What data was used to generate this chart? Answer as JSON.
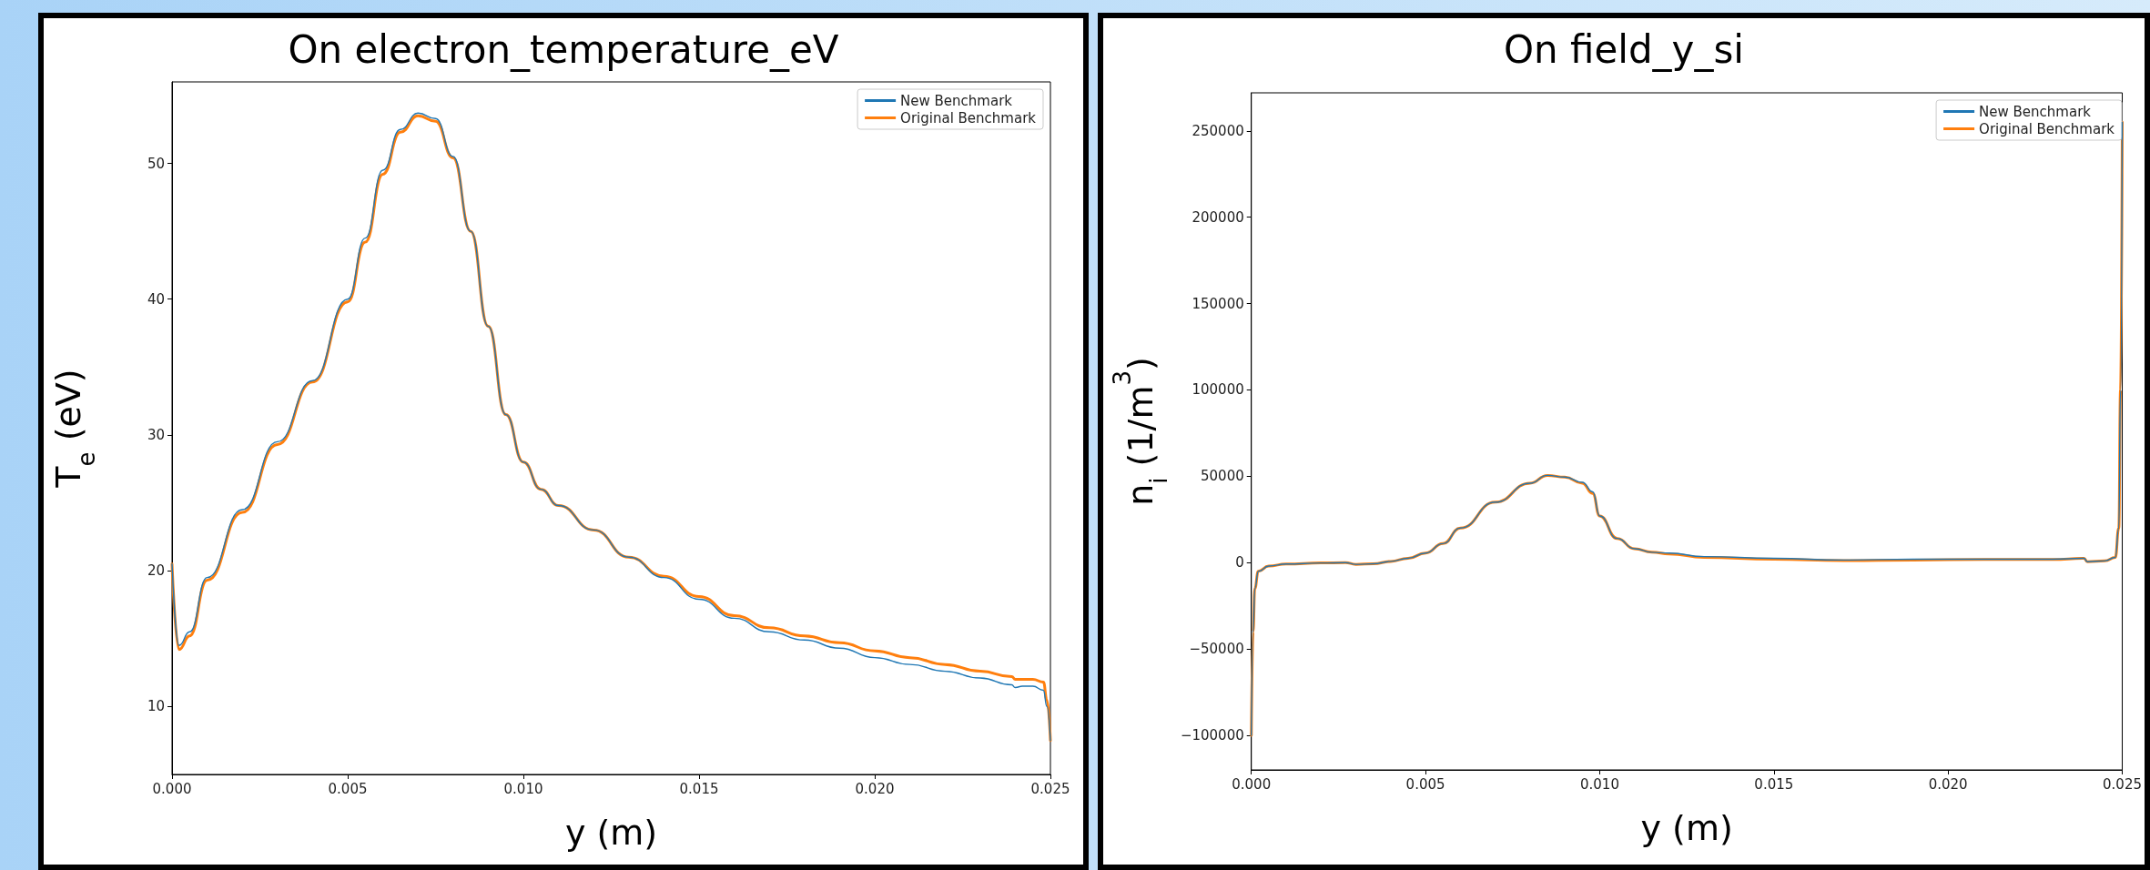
{
  "chart_data": [
    {
      "type": "line",
      "title": "On electron_temperature_eV",
      "xlabel": "y (m)",
      "ylabel": "T$_{e}$ (eV)",
      "xlim": [
        0,
        0.025
      ],
      "ylim": [
        5,
        56
      ],
      "xticks": [
        {
          "value": 0,
          "label": "0.000"
        },
        {
          "value": 0.005,
          "label": "0.005"
        },
        {
          "value": 0.01,
          "label": "0.010"
        },
        {
          "value": 0.015,
          "label": "0.015"
        },
        {
          "value": 0.02,
          "label": "0.020"
        },
        {
          "value": 0.025,
          "label": "0.025"
        }
      ],
      "yticks": [
        10,
        20,
        30,
        40,
        50
      ],
      "grid": false,
      "legend": "top right",
      "marker": "none",
      "line_style": "solid",
      "series": [
        {
          "name": "New Benchmark",
          "color": "#1f77b4",
          "x": [
            0,
            0.0002,
            0.0005,
            0.001,
            0.002,
            0.003,
            0.004,
            0.005,
            0.0055,
            0.006,
            0.0065,
            0.007,
            0.0075,
            0.008,
            0.0085,
            0.009,
            0.0095,
            0.01,
            0.0105,
            0.011,
            0.012,
            0.013,
            0.014,
            0.015,
            0.016,
            0.017,
            0.018,
            0.019,
            0.02,
            0.021,
            0.022,
            0.023,
            0.0239,
            0.024,
            0.0242,
            0.0245,
            0.0248,
            0.0249,
            0.025
          ],
          "values": [
            20.5,
            14.5,
            15.5,
            19.5,
            24.5,
            29.5,
            34,
            40,
            44.5,
            49.5,
            52.5,
            53.7,
            53.3,
            50.5,
            45,
            38,
            31.5,
            28,
            26,
            24.8,
            23,
            21,
            19.5,
            17.9,
            16.5,
            15.5,
            14.9,
            14.3,
            13.6,
            13.1,
            12.6,
            12.1,
            11.6,
            11.4,
            11.5,
            11.5,
            11.2,
            10,
            7.5
          ]
        },
        {
          "name": "Original Benchmark",
          "color": "#ff7f0e",
          "x": [
            0,
            0.0002,
            0.0005,
            0.001,
            0.002,
            0.003,
            0.004,
            0.005,
            0.0055,
            0.006,
            0.0065,
            0.007,
            0.0075,
            0.008,
            0.0085,
            0.009,
            0.0095,
            0.01,
            0.0105,
            0.011,
            0.012,
            0.013,
            0.014,
            0.015,
            0.016,
            0.017,
            0.018,
            0.019,
            0.02,
            0.021,
            0.022,
            0.023,
            0.0239,
            0.024,
            0.0242,
            0.0245,
            0.0248,
            0.0249,
            0.025
          ],
          "values": [
            20.5,
            14.2,
            15.2,
            19.3,
            24.3,
            29.3,
            33.9,
            39.8,
            44.2,
            49.2,
            52.3,
            53.5,
            53.1,
            50.4,
            45,
            38,
            31.5,
            28,
            26,
            24.8,
            23,
            21,
            19.6,
            18.1,
            16.7,
            15.8,
            15.2,
            14.7,
            14.1,
            13.6,
            13.1,
            12.6,
            12.2,
            12,
            12,
            12,
            11.8,
            10.5,
            7.5
          ]
        }
      ]
    },
    {
      "type": "line",
      "title": "On field_y_si",
      "xlabel": "y (m)",
      "ylabel": "n$_{i}$ (1/m$^{3}$)",
      "xlim": [
        0,
        0.025
      ],
      "ylim": [
        -120000,
        272000
      ],
      "xticks": [
        {
          "value": 0,
          "label": "0.000"
        },
        {
          "value": 0.005,
          "label": "0.005"
        },
        {
          "value": 0.01,
          "label": "0.010"
        },
        {
          "value": 0.015,
          "label": "0.015"
        },
        {
          "value": 0.02,
          "label": "0.020"
        },
        {
          "value": 0.025,
          "label": "0.025"
        }
      ],
      "yticks": [
        {
          "value": -100000,
          "label": "−100000"
        },
        {
          "value": -50000,
          "label": "−50000"
        },
        0,
        50000,
        100000,
        150000,
        200000,
        250000
      ],
      "grid": false,
      "legend": "top right",
      "marker": "none",
      "line_style": "solid",
      "series": [
        {
          "name": "New Benchmark",
          "color": "#1f77b4",
          "x": [
            0,
            5e-05,
            0.0001,
            0.0002,
            0.0005,
            0.001,
            0.002,
            0.0027,
            0.003,
            0.0035,
            0.004,
            0.0045,
            0.005,
            0.0055,
            0.006,
            0.007,
            0.008,
            0.0085,
            0.009,
            0.0095,
            0.0098,
            0.01,
            0.0105,
            0.011,
            0.0115,
            0.012,
            0.013,
            0.015,
            0.017,
            0.019,
            0.021,
            0.023,
            0.0239,
            0.024,
            0.0245,
            0.0248,
            0.0249,
            0.02495,
            0.025
          ],
          "values": [
            -100000,
            -40000,
            -15000,
            -5000,
            -2000,
            -800,
            -200,
            0,
            -1000,
            -700,
            700,
            2500,
            5500,
            11000,
            20000,
            35000,
            46000,
            50500,
            49500,
            46500,
            41000,
            27000,
            14000,
            8000,
            6000,
            5500,
            3500,
            2500,
            1500,
            2000,
            2000,
            2000,
            2500,
            500,
            1000,
            3000,
            20000,
            100000,
            255000
          ]
        },
        {
          "name": "Original Benchmark",
          "color": "#ff7f0e",
          "x": [
            0,
            5e-05,
            0.0001,
            0.0002,
            0.0005,
            0.001,
            0.002,
            0.0027,
            0.003,
            0.0035,
            0.004,
            0.0045,
            0.005,
            0.0055,
            0.006,
            0.007,
            0.008,
            0.0085,
            0.009,
            0.0095,
            0.0098,
            0.01,
            0.0105,
            0.011,
            0.0115,
            0.012,
            0.013,
            0.015,
            0.017,
            0.019,
            0.021,
            0.023,
            0.0239,
            0.024,
            0.0245,
            0.0248,
            0.0249,
            0.02495,
            0.025
          ],
          "values": [
            -100000,
            -40000,
            -15000,
            -5000,
            -2000,
            -800,
            -200,
            0,
            -1000,
            -700,
            700,
            2500,
            5500,
            11000,
            20000,
            35000,
            46000,
            50500,
            49500,
            46000,
            40000,
            27000,
            14000,
            8000,
            6000,
            5000,
            3000,
            2000,
            1200,
            1500,
            1800,
            1800,
            2500,
            500,
            1000,
            3000,
            20000,
            100000,
            255000
          ]
        }
      ]
    }
  ]
}
